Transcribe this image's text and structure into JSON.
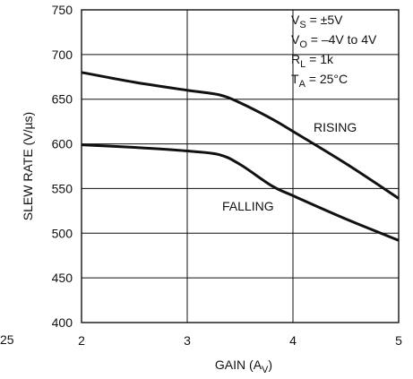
{
  "edge_fragment": "25",
  "chart_data": {
    "type": "line",
    "title": "",
    "xlabel": "GAIN (A",
    "xlabel_sub": "V",
    "xlabel_close": ")",
    "ylabel": "SLEW RATE (V/µs)",
    "xlim": [
      2,
      5
    ],
    "ylim": [
      400,
      750
    ],
    "x_ticks": [
      2,
      3,
      4,
      5
    ],
    "y_ticks": [
      400,
      450,
      500,
      550,
      600,
      650,
      700,
      750
    ],
    "grid": true,
    "legend": "none",
    "conditions": [
      {
        "main": "V",
        "sub": "S",
        "rest": " = ±5V"
      },
      {
        "main": "V",
        "sub": "O",
        "rest": " = –4V to 4V"
      },
      {
        "main": "R",
        "sub": "L",
        "rest": " = 1k"
      },
      {
        "main": "T",
        "sub": "A",
        "rest": " = 25°C"
      }
    ],
    "series": [
      {
        "name": "RISING",
        "x": [
          2.0,
          2.5,
          3.0,
          3.3,
          3.5,
          3.8,
          4.0,
          4.5,
          5.0
        ],
        "y": [
          680,
          669,
          660,
          655,
          646,
          628,
          614,
          578,
          539
        ]
      },
      {
        "name": "FALLING",
        "x": [
          2.0,
          2.5,
          3.0,
          3.3,
          3.5,
          3.8,
          4.0,
          4.5,
          5.0
        ],
        "y": [
          599,
          596,
          592,
          588,
          577,
          553,
          542,
          516,
          492
        ]
      }
    ]
  }
}
